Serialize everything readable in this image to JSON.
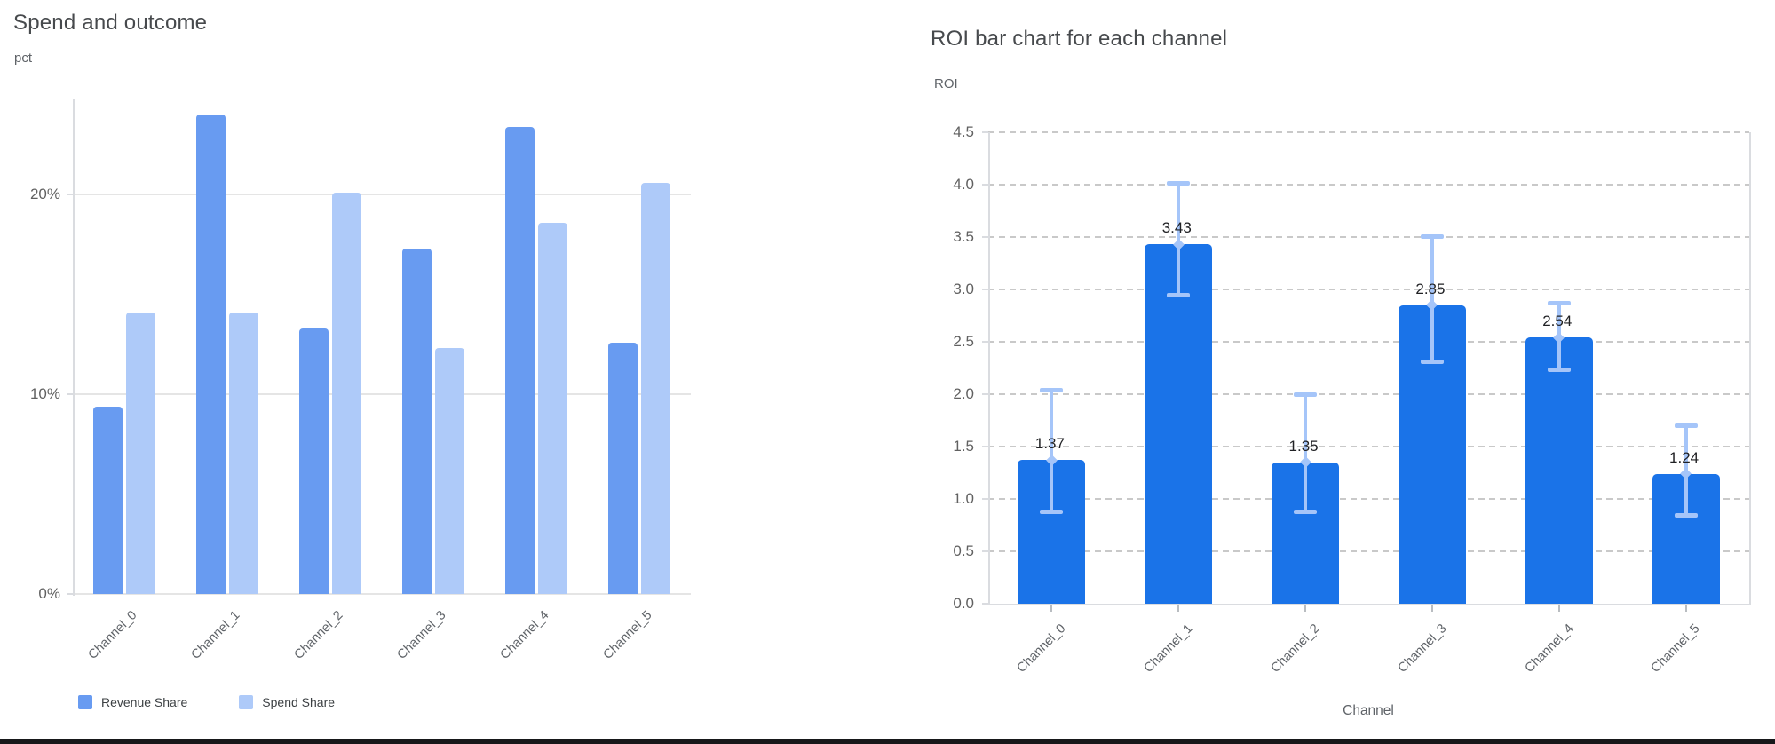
{
  "left_chart": {
    "title": "Spend and outcome",
    "unit_label": "pct"
  },
  "right_chart": {
    "title": "ROI bar chart for each channel",
    "unit_label": "ROI",
    "xaxis_title": "Channel"
  },
  "chart_data": [
    {
      "type": "bar",
      "title": "Spend and outcome",
      "ylabel": "pct",
      "xlabel": "",
      "categories": [
        "Channel_0",
        "Channel_1",
        "Channel_2",
        "Channel_3",
        "Channel_4",
        "Channel_5"
      ],
      "series": [
        {
          "name": "Revenue Share",
          "color": "#689bf1",
          "values": [
            9.4,
            24.0,
            13.3,
            17.3,
            23.4,
            12.6
          ]
        },
        {
          "name": "Spend Share",
          "color": "#aecaf9",
          "values": [
            14.1,
            14.1,
            20.1,
            12.3,
            18.6,
            20.6
          ]
        }
      ],
      "value_unit": "%",
      "ylim": [
        0,
        24.8
      ],
      "yticks": {
        "values": [
          0,
          10,
          20
        ],
        "labels": [
          "0%",
          "10%",
          "20%"
        ]
      },
      "grid": "solid-horizontal",
      "legend_position": "bottom-left"
    },
    {
      "type": "bar",
      "title": "ROI bar chart for each channel",
      "ylabel": "ROI",
      "xlabel": "Channel",
      "categories": [
        "Channel_0",
        "Channel_1",
        "Channel_2",
        "Channel_3",
        "Channel_4",
        "Channel_5"
      ],
      "values": [
        1.37,
        3.43,
        1.35,
        2.85,
        2.54,
        1.24
      ],
      "bar_labels": [
        "1.37",
        "3.43",
        "1.35",
        "2.85",
        "2.54",
        "1.24"
      ],
      "error_low": [
        0.88,
        2.95,
        0.88,
        2.31,
        2.24,
        0.85
      ],
      "error_high": [
        2.04,
        4.02,
        2.0,
        3.51,
        2.87,
        1.7
      ],
      "bar_color": "#1a73e8",
      "error_color": "#a5c5f9",
      "ylim": [
        0,
        4.5
      ],
      "yticks": {
        "values": [
          0.0,
          0.5,
          1.0,
          1.5,
          2.0,
          2.5,
          3.0,
          3.5,
          4.0,
          4.5
        ],
        "labels": [
          "0.0",
          "0.5",
          "1.0",
          "1.5",
          "2.0",
          "2.5",
          "3.0",
          "3.5",
          "4.0",
          "4.5"
        ]
      },
      "grid": "dashed-horizontal",
      "legend_position": "none"
    }
  ]
}
